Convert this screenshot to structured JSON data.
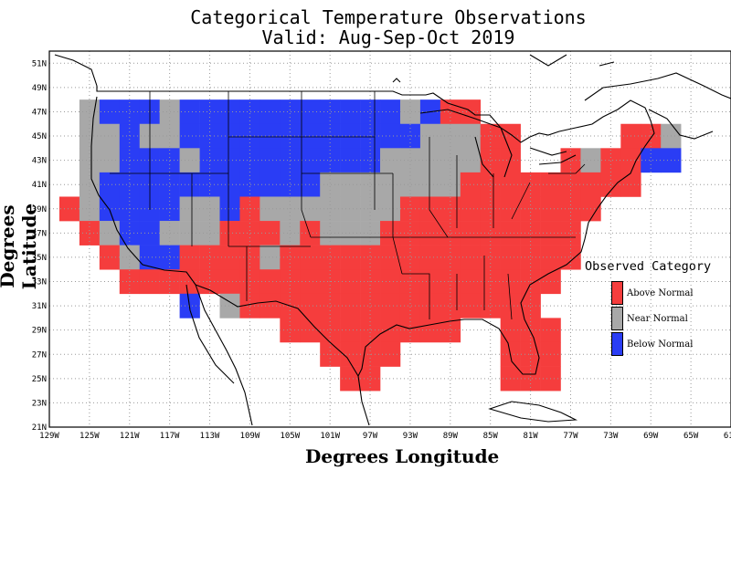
{
  "title_line1": "Categorical Temperature Observations",
  "title_line2": "Valid: Aug-Sep-Oct 2019",
  "xlabel": "Degrees Longitude",
  "ylabel": "Degrees Latitude",
  "legend": {
    "title": "Observed Category",
    "items": [
      {
        "label": "Above Normal",
        "color": "#f53d3d"
      },
      {
        "label": "Near Normal",
        "color": "#a8a8a8"
      },
      {
        "label": "Below Normal",
        "color": "#2a3df5"
      }
    ]
  },
  "chart_data": {
    "type": "heatmap",
    "title": "Categorical Temperature Observations",
    "subtitle": "Valid: Aug-Sep-Oct 2019",
    "xlabel": "Degrees Longitude",
    "ylabel": "Degrees Latitude",
    "xlim": [
      -129,
      -61
    ],
    "ylim": [
      21,
      52
    ],
    "x_ticks": [
      "129W",
      "125W",
      "121W",
      "117W",
      "113W",
      "109W",
      "105W",
      "101W",
      "97W",
      "93W",
      "89W",
      "85W",
      "81W",
      "77W",
      "73W",
      "69W",
      "65W",
      "61W"
    ],
    "y_ticks": [
      "21N",
      "23N",
      "25N",
      "27N",
      "29N",
      "31N",
      "33N",
      "35N",
      "37N",
      "39N",
      "41N",
      "43N",
      "45N",
      "47N",
      "49N",
      "51N"
    ],
    "grid": true,
    "legend_position": "right",
    "categories": [
      "Above Normal",
      "Near Normal",
      "Below Normal"
    ],
    "cells_note_units": "lon/lat degrees; each cell 2x2 degrees, value A/N/B",
    "cells": [
      {
        "lon": -125,
        "lat": 47,
        "v": "N"
      },
      {
        "lon": -123,
        "lat": 47,
        "v": "B"
      },
      {
        "lon": -121,
        "lat": 47,
        "v": "B"
      },
      {
        "lon": -119,
        "lat": 47,
        "v": "B"
      },
      {
        "lon": -117,
        "lat": 47,
        "v": "N"
      },
      {
        "lon": -115,
        "lat": 47,
        "v": "B"
      },
      {
        "lon": -113,
        "lat": 47,
        "v": "B"
      },
      {
        "lon": -111,
        "lat": 47,
        "v": "B"
      },
      {
        "lon": -109,
        "lat": 47,
        "v": "B"
      },
      {
        "lon": -107,
        "lat": 47,
        "v": "B"
      },
      {
        "lon": -105,
        "lat": 47,
        "v": "B"
      },
      {
        "lon": -103,
        "lat": 47,
        "v": "B"
      },
      {
        "lon": -101,
        "lat": 47,
        "v": "B"
      },
      {
        "lon": -99,
        "lat": 47,
        "v": "B"
      },
      {
        "lon": -97,
        "lat": 47,
        "v": "B"
      },
      {
        "lon": -95,
        "lat": 47,
        "v": "B"
      },
      {
        "lon": -93,
        "lat": 47,
        "v": "N"
      },
      {
        "lon": -91,
        "lat": 47,
        "v": "B"
      },
      {
        "lon": -89,
        "lat": 47,
        "v": "A"
      },
      {
        "lon": -87,
        "lat": 47,
        "v": "A"
      },
      {
        "lon": -125,
        "lat": 45,
        "v": "N"
      },
      {
        "lon": -123,
        "lat": 45,
        "v": "N"
      },
      {
        "lon": -121,
        "lat": 45,
        "v": "B"
      },
      {
        "lon": -119,
        "lat": 45,
        "v": "N"
      },
      {
        "lon": -117,
        "lat": 45,
        "v": "N"
      },
      {
        "lon": -115,
        "lat": 45,
        "v": "B"
      },
      {
        "lon": -113,
        "lat": 45,
        "v": "B"
      },
      {
        "lon": -111,
        "lat": 45,
        "v": "B"
      },
      {
        "lon": -109,
        "lat": 45,
        "v": "B"
      },
      {
        "lon": -107,
        "lat": 45,
        "v": "B"
      },
      {
        "lon": -105,
        "lat": 45,
        "v": "B"
      },
      {
        "lon": -103,
        "lat": 45,
        "v": "B"
      },
      {
        "lon": -101,
        "lat": 45,
        "v": "B"
      },
      {
        "lon": -99,
        "lat": 45,
        "v": "B"
      },
      {
        "lon": -97,
        "lat": 45,
        "v": "B"
      },
      {
        "lon": -95,
        "lat": 45,
        "v": "B"
      },
      {
        "lon": -93,
        "lat": 45,
        "v": "B"
      },
      {
        "lon": -91,
        "lat": 45,
        "v": "N"
      },
      {
        "lon": -89,
        "lat": 45,
        "v": "N"
      },
      {
        "lon": -87,
        "lat": 45,
        "v": "N"
      },
      {
        "lon": -85,
        "lat": 45,
        "v": "A"
      },
      {
        "lon": -83,
        "lat": 45,
        "v": "A"
      },
      {
        "lon": -71,
        "lat": 45,
        "v": "A"
      },
      {
        "lon": -69,
        "lat": 45,
        "v": "A"
      },
      {
        "lon": -67,
        "lat": 45,
        "v": "N"
      },
      {
        "lon": -125,
        "lat": 43,
        "v": "N"
      },
      {
        "lon": -123,
        "lat": 43,
        "v": "N"
      },
      {
        "lon": -121,
        "lat": 43,
        "v": "B"
      },
      {
        "lon": -119,
        "lat": 43,
        "v": "B"
      },
      {
        "lon": -117,
        "lat": 43,
        "v": "B"
      },
      {
        "lon": -115,
        "lat": 43,
        "v": "N"
      },
      {
        "lon": -113,
        "lat": 43,
        "v": "B"
      },
      {
        "lon": -111,
        "lat": 43,
        "v": "B"
      },
      {
        "lon": -109,
        "lat": 43,
        "v": "B"
      },
      {
        "lon": -107,
        "lat": 43,
        "v": "B"
      },
      {
        "lon": -105,
        "lat": 43,
        "v": "B"
      },
      {
        "lon": -103,
        "lat": 43,
        "v": "B"
      },
      {
        "lon": -101,
        "lat": 43,
        "v": "B"
      },
      {
        "lon": -99,
        "lat": 43,
        "v": "B"
      },
      {
        "lon": -97,
        "lat": 43,
        "v": "B"
      },
      {
        "lon": -95,
        "lat": 43,
        "v": "N"
      },
      {
        "lon": -93,
        "lat": 43,
        "v": "N"
      },
      {
        "lon": -91,
        "lat": 43,
        "v": "N"
      },
      {
        "lon": -89,
        "lat": 43,
        "v": "N"
      },
      {
        "lon": -87,
        "lat": 43,
        "v": "N"
      },
      {
        "lon": -85,
        "lat": 43,
        "v": "A"
      },
      {
        "lon": -83,
        "lat": 43,
        "v": "A"
      },
      {
        "lon": -77,
        "lat": 43,
        "v": "A"
      },
      {
        "lon": -75,
        "lat": 43,
        "v": "N"
      },
      {
        "lon": -73,
        "lat": 43,
        "v": "A"
      },
      {
        "lon": -71,
        "lat": 43,
        "v": "A"
      },
      {
        "lon": -69,
        "lat": 43,
        "v": "B"
      },
      {
        "lon": -67,
        "lat": 43,
        "v": "B"
      },
      {
        "lon": -125,
        "lat": 41,
        "v": "N"
      },
      {
        "lon": -123,
        "lat": 41,
        "v": "B"
      },
      {
        "lon": -121,
        "lat": 41,
        "v": "B"
      },
      {
        "lon": -119,
        "lat": 41,
        "v": "B"
      },
      {
        "lon": -117,
        "lat": 41,
        "v": "B"
      },
      {
        "lon": -115,
        "lat": 41,
        "v": "B"
      },
      {
        "lon": -113,
        "lat": 41,
        "v": "B"
      },
      {
        "lon": -111,
        "lat": 41,
        "v": "B"
      },
      {
        "lon": -109,
        "lat": 41,
        "v": "B"
      },
      {
        "lon": -107,
        "lat": 41,
        "v": "B"
      },
      {
        "lon": -105,
        "lat": 41,
        "v": "B"
      },
      {
        "lon": -103,
        "lat": 41,
        "v": "B"
      },
      {
        "lon": -101,
        "lat": 41,
        "v": "N"
      },
      {
        "lon": -99,
        "lat": 41,
        "v": "N"
      },
      {
        "lon": -97,
        "lat": 41,
        "v": "N"
      },
      {
        "lon": -95,
        "lat": 41,
        "v": "N"
      },
      {
        "lon": -93,
        "lat": 41,
        "v": "N"
      },
      {
        "lon": -91,
        "lat": 41,
        "v": "N"
      },
      {
        "lon": -89,
        "lat": 41,
        "v": "N"
      },
      {
        "lon": -87,
        "lat": 41,
        "v": "A"
      },
      {
        "lon": -85,
        "lat": 41,
        "v": "A"
      },
      {
        "lon": -83,
        "lat": 41,
        "v": "A"
      },
      {
        "lon": -81,
        "lat": 41,
        "v": "A"
      },
      {
        "lon": -79,
        "lat": 41,
        "v": "A"
      },
      {
        "lon": -77,
        "lat": 41,
        "v": "A"
      },
      {
        "lon": -75,
        "lat": 41,
        "v": "A"
      },
      {
        "lon": -73,
        "lat": 41,
        "v": "A"
      },
      {
        "lon": -71,
        "lat": 41,
        "v": "A"
      },
      {
        "lon": -127,
        "lat": 39,
        "v": "A"
      },
      {
        "lon": -125,
        "lat": 39,
        "v": "N"
      },
      {
        "lon": -123,
        "lat": 39,
        "v": "B"
      },
      {
        "lon": -121,
        "lat": 39,
        "v": "B"
      },
      {
        "lon": -119,
        "lat": 39,
        "v": "B"
      },
      {
        "lon": -117,
        "lat": 39,
        "v": "B"
      },
      {
        "lon": -115,
        "lat": 39,
        "v": "N"
      },
      {
        "lon": -113,
        "lat": 39,
        "v": "N"
      },
      {
        "lon": -111,
        "lat": 39,
        "v": "B"
      },
      {
        "lon": -109,
        "lat": 39,
        "v": "A"
      },
      {
        "lon": -107,
        "lat": 39,
        "v": "N"
      },
      {
        "lon": -105,
        "lat": 39,
        "v": "N"
      },
      {
        "lon": -103,
        "lat": 39,
        "v": "N"
      },
      {
        "lon": -101,
        "lat": 39,
        "v": "N"
      },
      {
        "lon": -99,
        "lat": 39,
        "v": "N"
      },
      {
        "lon": -97,
        "lat": 39,
        "v": "N"
      },
      {
        "lon": -95,
        "lat": 39,
        "v": "N"
      },
      {
        "lon": -93,
        "lat": 39,
        "v": "A"
      },
      {
        "lon": -91,
        "lat": 39,
        "v": "A"
      },
      {
        "lon": -89,
        "lat": 39,
        "v": "A"
      },
      {
        "lon": -87,
        "lat": 39,
        "v": "A"
      },
      {
        "lon": -85,
        "lat": 39,
        "v": "A"
      },
      {
        "lon": -83,
        "lat": 39,
        "v": "A"
      },
      {
        "lon": -81,
        "lat": 39,
        "v": "A"
      },
      {
        "lon": -79,
        "lat": 39,
        "v": "A"
      },
      {
        "lon": -77,
        "lat": 39,
        "v": "A"
      },
      {
        "lon": -75,
        "lat": 39,
        "v": "A"
      },
      {
        "lon": -125,
        "lat": 37,
        "v": "A"
      },
      {
        "lon": -123,
        "lat": 37,
        "v": "N"
      },
      {
        "lon": -121,
        "lat": 37,
        "v": "B"
      },
      {
        "lon": -119,
        "lat": 37,
        "v": "B"
      },
      {
        "lon": -117,
        "lat": 37,
        "v": "N"
      },
      {
        "lon": -115,
        "lat": 37,
        "v": "N"
      },
      {
        "lon": -113,
        "lat": 37,
        "v": "N"
      },
      {
        "lon": -111,
        "lat": 37,
        "v": "A"
      },
      {
        "lon": -109,
        "lat": 37,
        "v": "A"
      },
      {
        "lon": -107,
        "lat": 37,
        "v": "A"
      },
      {
        "lon": -105,
        "lat": 37,
        "v": "N"
      },
      {
        "lon": -103,
        "lat": 37,
        "v": "A"
      },
      {
        "lon": -101,
        "lat": 37,
        "v": "N"
      },
      {
        "lon": -99,
        "lat": 37,
        "v": "N"
      },
      {
        "lon": -97,
        "lat": 37,
        "v": "N"
      },
      {
        "lon": -95,
        "lat": 37,
        "v": "A"
      },
      {
        "lon": -93,
        "lat": 37,
        "v": "A"
      },
      {
        "lon": -91,
        "lat": 37,
        "v": "A"
      },
      {
        "lon": -89,
        "lat": 37,
        "v": "A"
      },
      {
        "lon": -87,
        "lat": 37,
        "v": "A"
      },
      {
        "lon": -85,
        "lat": 37,
        "v": "A"
      },
      {
        "lon": -83,
        "lat": 37,
        "v": "A"
      },
      {
        "lon": -81,
        "lat": 37,
        "v": "A"
      },
      {
        "lon": -79,
        "lat": 37,
        "v": "A"
      },
      {
        "lon": -77,
        "lat": 37,
        "v": "A"
      },
      {
        "lon": -123,
        "lat": 35,
        "v": "A"
      },
      {
        "lon": -121,
        "lat": 35,
        "v": "N"
      },
      {
        "lon": -119,
        "lat": 35,
        "v": "B"
      },
      {
        "lon": -117,
        "lat": 35,
        "v": "B"
      },
      {
        "lon": -115,
        "lat": 35,
        "v": "A"
      },
      {
        "lon": -113,
        "lat": 35,
        "v": "A"
      },
      {
        "lon": -111,
        "lat": 35,
        "v": "A"
      },
      {
        "lon": -109,
        "lat": 35,
        "v": "A"
      },
      {
        "lon": -107,
        "lat": 35,
        "v": "N"
      },
      {
        "lon": -105,
        "lat": 35,
        "v": "A"
      },
      {
        "lon": -103,
        "lat": 35,
        "v": "A"
      },
      {
        "lon": -101,
        "lat": 35,
        "v": "A"
      },
      {
        "lon": -99,
        "lat": 35,
        "v": "A"
      },
      {
        "lon": -97,
        "lat": 35,
        "v": "A"
      },
      {
        "lon": -95,
        "lat": 35,
        "v": "A"
      },
      {
        "lon": -93,
        "lat": 35,
        "v": "A"
      },
      {
        "lon": -91,
        "lat": 35,
        "v": "A"
      },
      {
        "lon": -89,
        "lat": 35,
        "v": "A"
      },
      {
        "lon": -87,
        "lat": 35,
        "v": "A"
      },
      {
        "lon": -85,
        "lat": 35,
        "v": "A"
      },
      {
        "lon": -83,
        "lat": 35,
        "v": "A"
      },
      {
        "lon": -81,
        "lat": 35,
        "v": "A"
      },
      {
        "lon": -79,
        "lat": 35,
        "v": "A"
      },
      {
        "lon": -77,
        "lat": 35,
        "v": "A"
      },
      {
        "lon": -121,
        "lat": 33,
        "v": "A"
      },
      {
        "lon": -119,
        "lat": 33,
        "v": "A"
      },
      {
        "lon": -117,
        "lat": 33,
        "v": "A"
      },
      {
        "lon": -115,
        "lat": 33,
        "v": "A"
      },
      {
        "lon": -113,
        "lat": 33,
        "v": "A"
      },
      {
        "lon": -111,
        "lat": 33,
        "v": "A"
      },
      {
        "lon": -109,
        "lat": 33,
        "v": "A"
      },
      {
        "lon": -107,
        "lat": 33,
        "v": "A"
      },
      {
        "lon": -105,
        "lat": 33,
        "v": "A"
      },
      {
        "lon": -103,
        "lat": 33,
        "v": "A"
      },
      {
        "lon": -101,
        "lat": 33,
        "v": "A"
      },
      {
        "lon": -99,
        "lat": 33,
        "v": "A"
      },
      {
        "lon": -97,
        "lat": 33,
        "v": "A"
      },
      {
        "lon": -95,
        "lat": 33,
        "v": "A"
      },
      {
        "lon": -93,
        "lat": 33,
        "v": "A"
      },
      {
        "lon": -91,
        "lat": 33,
        "v": "A"
      },
      {
        "lon": -89,
        "lat": 33,
        "v": "A"
      },
      {
        "lon": -87,
        "lat": 33,
        "v": "A"
      },
      {
        "lon": -85,
        "lat": 33,
        "v": "A"
      },
      {
        "lon": -83,
        "lat": 33,
        "v": "A"
      },
      {
        "lon": -81,
        "lat": 33,
        "v": "A"
      },
      {
        "lon": -79,
        "lat": 33,
        "v": "A"
      },
      {
        "lon": -115,
        "lat": 31,
        "v": "B"
      },
      {
        "lon": -111,
        "lat": 31,
        "v": "N"
      },
      {
        "lon": -109,
        "lat": 31,
        "v": "A"
      },
      {
        "lon": -107,
        "lat": 31,
        "v": "A"
      },
      {
        "lon": -105,
        "lat": 31,
        "v": "A"
      },
      {
        "lon": -103,
        "lat": 31,
        "v": "A"
      },
      {
        "lon": -101,
        "lat": 31,
        "v": "A"
      },
      {
        "lon": -99,
        "lat": 31,
        "v": "A"
      },
      {
        "lon": -97,
        "lat": 31,
        "v": "A"
      },
      {
        "lon": -95,
        "lat": 31,
        "v": "A"
      },
      {
        "lon": -93,
        "lat": 31,
        "v": "A"
      },
      {
        "lon": -91,
        "lat": 31,
        "v": "A"
      },
      {
        "lon": -89,
        "lat": 31,
        "v": "A"
      },
      {
        "lon": -87,
        "lat": 31,
        "v": "A"
      },
      {
        "lon": -85,
        "lat": 31,
        "v": "A"
      },
      {
        "lon": -83,
        "lat": 31,
        "v": "A"
      },
      {
        "lon": -81,
        "lat": 31,
        "v": "A"
      },
      {
        "lon": -105,
        "lat": 29,
        "v": "A"
      },
      {
        "lon": -103,
        "lat": 29,
        "v": "A"
      },
      {
        "lon": -101,
        "lat": 29,
        "v": "A"
      },
      {
        "lon": -99,
        "lat": 29,
        "v": "A"
      },
      {
        "lon": -97,
        "lat": 29,
        "v": "A"
      },
      {
        "lon": -95,
        "lat": 29,
        "v": "A"
      },
      {
        "lon": -93,
        "lat": 29,
        "v": "A"
      },
      {
        "lon": -91,
        "lat": 29,
        "v": "A"
      },
      {
        "lon": -89,
        "lat": 29,
        "v": "A"
      },
      {
        "lon": -83,
        "lat": 29,
        "v": "A"
      },
      {
        "lon": -81,
        "lat": 29,
        "v": "A"
      },
      {
        "lon": -79,
        "lat": 29,
        "v": "A"
      },
      {
        "lon": -101,
        "lat": 27,
        "v": "A"
      },
      {
        "lon": -99,
        "lat": 27,
        "v": "A"
      },
      {
        "lon": -97,
        "lat": 27,
        "v": "A"
      },
      {
        "lon": -95,
        "lat": 27,
        "v": "A"
      },
      {
        "lon": -83,
        "lat": 27,
        "v": "A"
      },
      {
        "lon": -81,
        "lat": 27,
        "v": "A"
      },
      {
        "lon": -79,
        "lat": 27,
        "v": "A"
      },
      {
        "lon": -99,
        "lat": 25,
        "v": "A"
      },
      {
        "lon": -97,
        "lat": 25,
        "v": "A"
      },
      {
        "lon": -83,
        "lat": 25,
        "v": "A"
      },
      {
        "lon": -81,
        "lat": 25,
        "v": "A"
      },
      {
        "lon": -79,
        "lat": 25,
        "v": "A"
      }
    ]
  }
}
